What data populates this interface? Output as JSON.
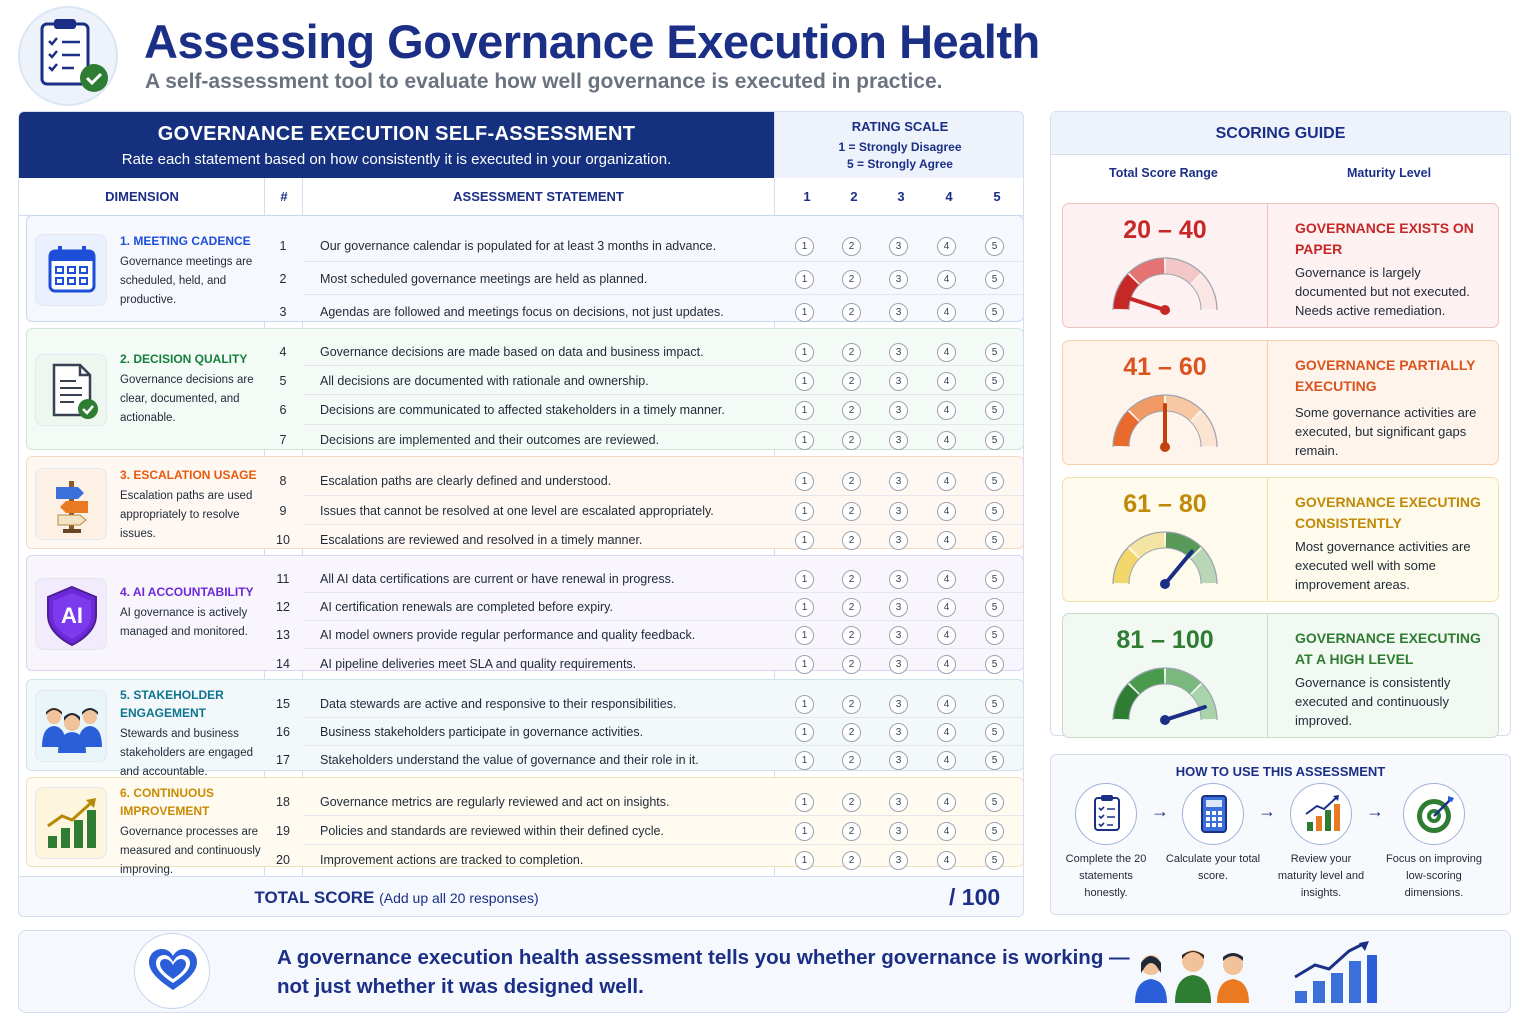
{
  "header": {
    "title": "Assessing Governance Execution Health",
    "subtitle": "A self-assessment tool to evaluate how well governance is executed in practice."
  },
  "assessment": {
    "title": "GOVERNANCE EXECUTION SELF-ASSESSMENT",
    "instruction": "Rate each statement based on how consistently it is executed in your organization.",
    "rating_scale": {
      "title": "RATING SCALE",
      "low": "1 = Strongly Disagree",
      "high": "5 = Strongly Agree"
    },
    "columns": {
      "dimension": "DIMENSION",
      "number": "#",
      "statement": "ASSESSMENT STATEMENT",
      "ratings": [
        "1",
        "2",
        "3",
        "4",
        "5"
      ]
    },
    "dimensions": [
      {
        "title": "1. MEETING CADENCE",
        "desc": "Governance meetings are scheduled, held, and productive.",
        "color": "#1d4ed8",
        "icon": "calendar-icon",
        "rows": [
          {
            "num": "1",
            "text": "Our governance calendar is populated for at least 3 months in advance."
          },
          {
            "num": "2",
            "text": "Most scheduled governance meetings are held as planned."
          },
          {
            "num": "3",
            "text": "Agendas are followed and meetings focus on decisions, not just updates."
          }
        ]
      },
      {
        "title": "2. DECISION QUALITY",
        "desc": "Governance decisions are clear, documented, and actionable.",
        "color": "#15803d",
        "icon": "document-check-icon",
        "rows": [
          {
            "num": "4",
            "text": "Governance decisions are made based on data and business impact."
          },
          {
            "num": "5",
            "text": "All decisions are documented with rationale and ownership."
          },
          {
            "num": "6",
            "text": "Decisions are communicated to affected stakeholders in a timely manner."
          },
          {
            "num": "7",
            "text": "Decisions are implemented and their outcomes are reviewed."
          }
        ]
      },
      {
        "title": "3. ESCALATION USAGE",
        "desc": "Escalation paths are used appropriately to resolve issues.",
        "color": "#ea580c",
        "icon": "signpost-icon",
        "rows": [
          {
            "num": "8",
            "text": "Escalation paths are clearly defined and understood."
          },
          {
            "num": "9",
            "text": "Issues that cannot be resolved at one level are escalated appropriately."
          },
          {
            "num": "10",
            "text": "Escalations are reviewed and resolved in a timely manner."
          }
        ]
      },
      {
        "title": "4. AI ACCOUNTABILITY",
        "desc": "AI governance is actively managed and monitored.",
        "color": "#6d28d9",
        "icon": "ai-shield-icon",
        "icon_text": "AI",
        "rows": [
          {
            "num": "11",
            "text": "All AI data certifications are current or have renewal in progress."
          },
          {
            "num": "12",
            "text": "AI certification renewals are completed before expiry."
          },
          {
            "num": "13",
            "text": "AI model owners provide regular performance and quality feedback."
          },
          {
            "num": "14",
            "text": "AI pipeline deliveries meet SLA and quality requirements."
          }
        ]
      },
      {
        "title": "5. STAKEHOLDER ENGAGEMENT",
        "desc": "Stewards and business stakeholders are engaged and accountable.",
        "color": "#0e7490",
        "icon": "people-group-icon",
        "rows": [
          {
            "num": "15",
            "text": "Data stewards are active and responsive to their responsibilities."
          },
          {
            "num": "16",
            "text": "Business stakeholders participate in governance activities."
          },
          {
            "num": "17",
            "text": "Stakeholders understand the value of governance and their role in it."
          }
        ]
      },
      {
        "title": "6. CONTINUOUS IMPROVEMENT",
        "desc": "Governance processes are measured and continuously improving.",
        "color": "#ca8a04",
        "icon": "growth-chart-icon",
        "rows": [
          {
            "num": "18",
            "text": "Governance metrics are regularly reviewed and act on insights."
          },
          {
            "num": "19",
            "text": "Policies and standards are reviewed within their defined cycle."
          },
          {
            "num": "20",
            "text": "Improvement actions are tracked to completion."
          }
        ]
      }
    ],
    "total": {
      "label": "TOTAL SCORE",
      "hint": "(Add up all 20 responses)",
      "max": "/ 100"
    }
  },
  "scoring_guide": {
    "title": "SCORING GUIDE",
    "col_range": "Total Score Range",
    "col_level": "Maturity Level",
    "bands": [
      {
        "range": "20 – 40",
        "level": "GOVERNANCE EXISTS ON PAPER",
        "desc": "Governance is largely documented but not executed. Needs active remediation.",
        "color": "#c62828",
        "needle_fraction": 0.1
      },
      {
        "range": "41 – 60",
        "level": "GOVERNANCE PARTIALLY EXECUTING",
        "desc": "Some governance activities are executed, but significant gaps remain.",
        "color": "#d9541e",
        "needle_fraction": 0.5
      },
      {
        "range": "61 – 80",
        "level": "GOVERNANCE EXECUTING CONSISTENTLY",
        "desc": "Most governance activities are executed well with some improvement areas.",
        "color": "#c08a08",
        "needle_fraction": 0.72
      },
      {
        "range": "81 – 100",
        "level": "GOVERNANCE EXECUTING AT A HIGH LEVEL",
        "desc": "Governance is consistently executed and continuously improved.",
        "color": "#2e7d32",
        "needle_fraction": 0.9
      }
    ]
  },
  "how_to_use": {
    "title": "HOW TO USE THIS ASSESSMENT",
    "steps": [
      {
        "text": "Complete the 20 statements honestly.",
        "icon": "checklist-icon"
      },
      {
        "text": "Calculate your total score.",
        "icon": "calculator-icon"
      },
      {
        "text": "Review your maturity level and insights.",
        "icon": "chart-up-icon"
      },
      {
        "text": "Focus on improving low-scoring dimensions.",
        "icon": "target-icon"
      }
    ]
  },
  "banner": {
    "line1": "A governance execution health assessment tells you whether governance is working —",
    "line2": "not just whether it was designed well."
  }
}
